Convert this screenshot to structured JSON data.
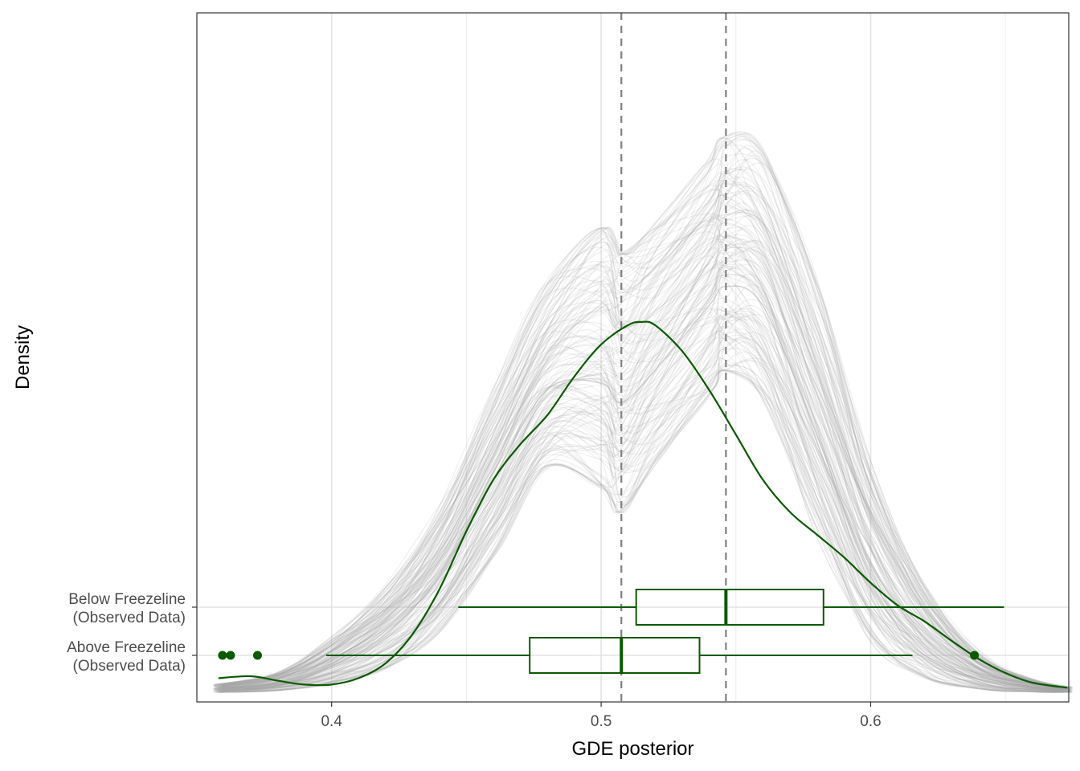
{
  "chart_data": {
    "type": "density",
    "xlabel": "GDE posterior",
    "ylabel": "Density",
    "xlim": [
      0.35,
      0.6735
    ],
    "x_ticks": [
      "0.4",
      "0.5",
      "0.6"
    ],
    "x_tick_values": [
      0.4,
      0.5,
      0.6
    ],
    "grid": true,
    "legend": "none",
    "reference_lines": {
      "style": "dashed",
      "color": "#808080",
      "values": [
        0.5075,
        0.5463
      ]
    },
    "posterior_draws": {
      "color": "#a6a6a6",
      "description_of_series": "many overlaid posterior predictive density curves",
      "x": [
        0.358,
        0.38,
        0.4,
        0.42,
        0.44,
        0.46,
        0.48,
        0.5,
        0.5075,
        0.52,
        0.54,
        0.5463,
        0.56,
        0.58,
        0.6,
        0.62,
        0.64,
        0.66,
        0.673
      ],
      "y_central": [
        0.002,
        0.01,
        0.04,
        0.09,
        0.18,
        0.33,
        0.47,
        0.48,
        0.45,
        0.5,
        0.6,
        0.63,
        0.6,
        0.4,
        0.18,
        0.07,
        0.02,
        0.006,
        0.002
      ],
      "y_low": [
        0.0,
        0.003,
        0.015,
        0.04,
        0.1,
        0.22,
        0.35,
        0.32,
        0.28,
        0.36,
        0.47,
        0.5,
        0.46,
        0.26,
        0.09,
        0.025,
        0.006,
        0.001,
        0.0
      ],
      "y_high": [
        0.012,
        0.03,
        0.08,
        0.16,
        0.28,
        0.46,
        0.63,
        0.72,
        0.68,
        0.72,
        0.82,
        0.86,
        0.84,
        0.62,
        0.34,
        0.16,
        0.06,
        0.02,
        0.008
      ]
    },
    "observed_density": {
      "color": "#0b5a00",
      "x": [
        0.358,
        0.37,
        0.38,
        0.39,
        0.4,
        0.41,
        0.42,
        0.43,
        0.44,
        0.45,
        0.46,
        0.47,
        0.48,
        0.49,
        0.5,
        0.51,
        0.515,
        0.52,
        0.53,
        0.54,
        0.55,
        0.56,
        0.57,
        0.58,
        0.59,
        0.6,
        0.61,
        0.62,
        0.63,
        0.64,
        0.65,
        0.66,
        0.673
      ],
      "y": [
        0.022,
        0.025,
        0.018,
        0.012,
        0.012,
        0.022,
        0.045,
        0.09,
        0.16,
        0.25,
        0.33,
        0.385,
        0.43,
        0.49,
        0.54,
        0.57,
        0.575,
        0.57,
        0.53,
        0.47,
        0.4,
        0.33,
        0.28,
        0.245,
        0.21,
        0.17,
        0.135,
        0.11,
        0.08,
        0.052,
        0.03,
        0.015,
        0.007
      ]
    },
    "y_range": [
      0,
      1.0
    ],
    "boxplots": {
      "color": "#0b5a00",
      "groups": [
        {
          "label": "Below Freezeline\n(Observed Data)",
          "whisker_low": 0.447,
          "q1": 0.513,
          "median": 0.5463,
          "q3": 0.5825,
          "whisker_high": 0.6495,
          "outliers": []
        },
        {
          "label": "Above Freezeline\n(Observed Data)",
          "whisker_low": 0.398,
          "q1": 0.4735,
          "median": 0.5075,
          "q3": 0.5365,
          "whisker_high": 0.6155,
          "outliers": [
            0.3595,
            0.3625,
            0.3725,
            0.6385
          ]
        }
      ]
    }
  }
}
